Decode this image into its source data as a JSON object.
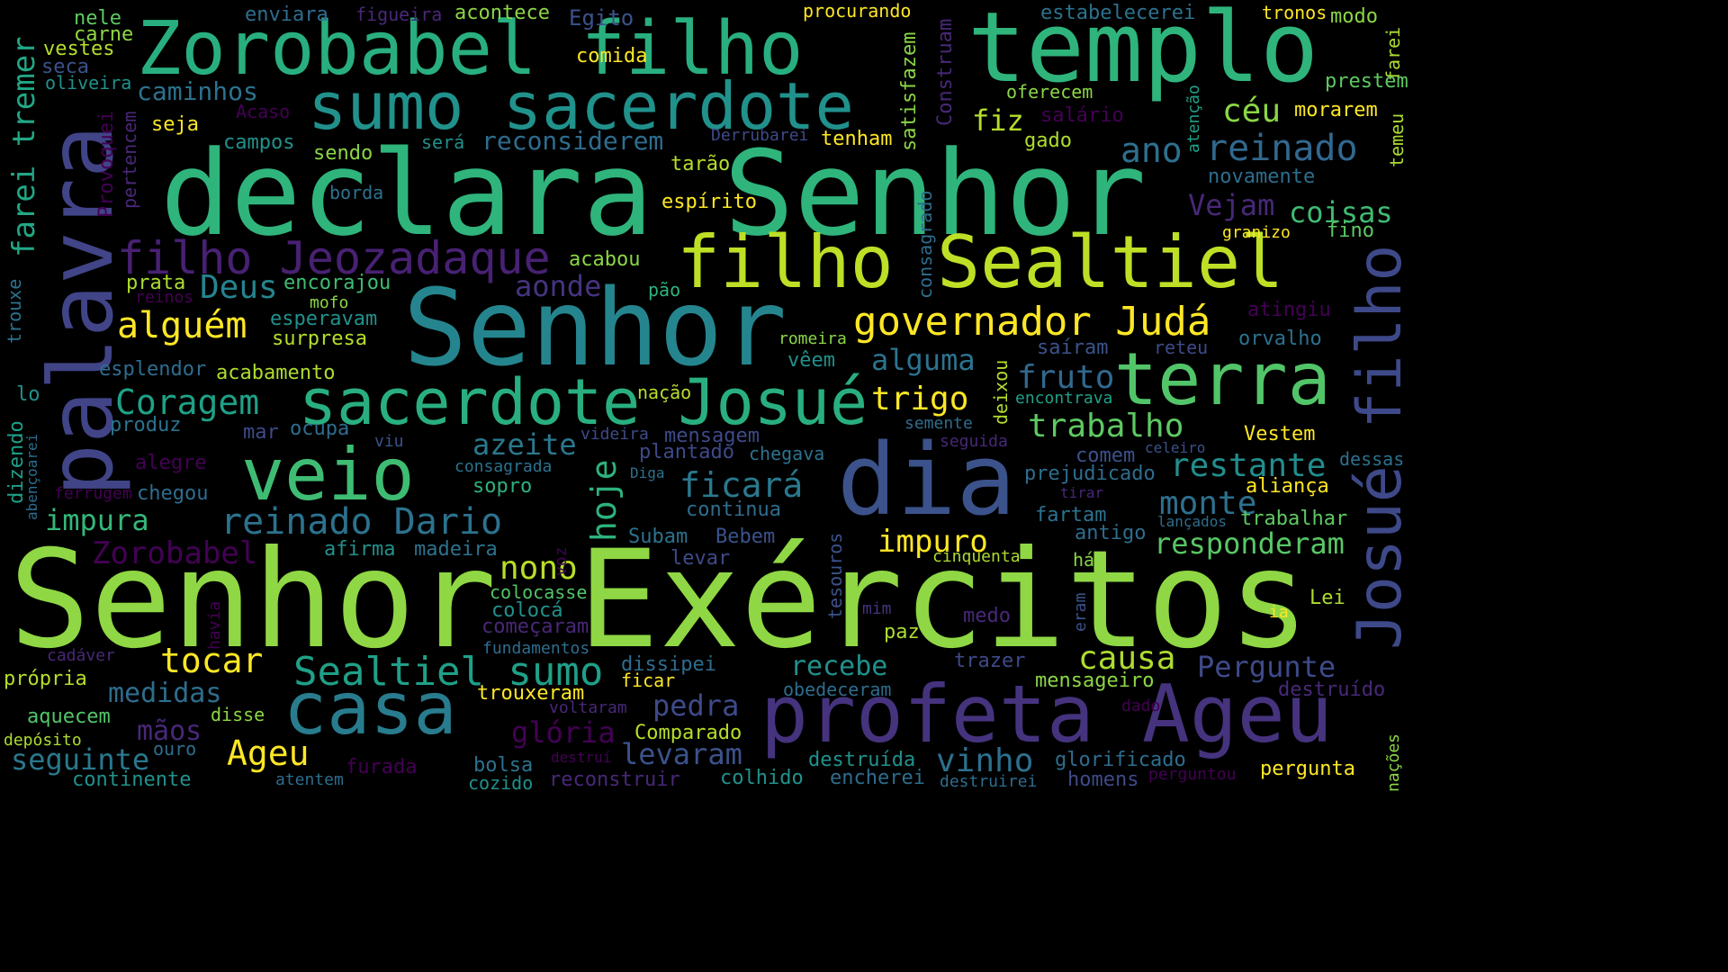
{
  "palette": {
    "background": "#000000",
    "purple_dark": "#440154",
    "purple": "#482878",
    "indigo": "#3e4a89",
    "blue": "#31688e",
    "teal": "#26828e",
    "teal_green": "#1f9e89",
    "green": "#35b779",
    "lime": "#6ece58",
    "yellow_green": "#b5de2b",
    "yellow": "#fde725"
  },
  "words": [
    {
      "text": "Senhor Exércitos",
      "color": "#8fd744",
      "weight": 1.0
    },
    {
      "text": "declara Senhor",
      "color": "#2fb47c",
      "weight": 0.88
    },
    {
      "text": "Senhor",
      "color": "#25858e",
      "weight": 0.78
    },
    {
      "text": "templo",
      "color": "#2fb47c",
      "weight": 0.62
    },
    {
      "text": "Zorobabel filho",
      "color": "#29af7f",
      "weight": 0.6
    },
    {
      "text": "dia",
      "color": "#3b528b",
      "weight": 0.7
    },
    {
      "text": "palavra",
      "color": "#414487",
      "weight": 0.58
    },
    {
      "text": "profeta Ageu",
      "color": "#46337e",
      "weight": 0.55
    },
    {
      "text": "filho Sealtiel",
      "color": "#bddf26",
      "weight": 0.52
    },
    {
      "text": "veio",
      "color": "#3fbc73",
      "weight": 0.5
    },
    {
      "text": "casa",
      "color": "#287c8e",
      "weight": 0.5
    },
    {
      "text": "terra",
      "color": "#52c569",
      "weight": 0.5
    },
    {
      "text": "sumo sacerdote",
      "color": "#21918c",
      "weight": 0.45
    },
    {
      "text": "sacerdote Josué",
      "color": "#29af7f",
      "weight": 0.42
    },
    {
      "text": "Josué filho",
      "color": "#3e4989",
      "weight": 0.42
    },
    {
      "text": "filho Jeozadaque",
      "color": "#482173",
      "weight": 0.33
    },
    {
      "text": "governador Judá",
      "color": "#fde725",
      "weight": 0.3
    },
    {
      "text": "Sealtiel sumo",
      "color": "#1fa088",
      "weight": 0.28
    },
    {
      "text": "reinado",
      "color": "#31688e",
      "weight": 0.25
    },
    {
      "text": "reinado Dario",
      "color": "#2c728e",
      "weight": 0.25
    },
    {
      "text": "Zorobabel",
      "color": "#440154",
      "weight": 0.22
    },
    {
      "text": "alguém",
      "color": "#fde725",
      "weight": 0.25
    },
    {
      "text": "Coragem",
      "color": "#1fa187",
      "weight": 0.24
    },
    {
      "text": "ano",
      "color": "#2d708e",
      "weight": 0.24
    },
    {
      "text": "hoje",
      "color": "#2db27d",
      "weight": 0.24
    },
    {
      "text": "Ageu",
      "color": "#fde725",
      "weight": 0.24
    },
    {
      "text": "céu",
      "color": "#8bd646",
      "weight": 0.23
    },
    {
      "text": "restante",
      "color": "#228d8d",
      "weight": 0.23
    },
    {
      "text": "ficará",
      "color": "#2a788e",
      "weight": 0.22
    },
    {
      "text": "tocar",
      "color": "#fde725",
      "weight": 0.22
    },
    {
      "text": "causa",
      "color": "#addc30",
      "weight": 0.22
    },
    {
      "text": "nono",
      "color": "#b8de29",
      "weight": 0.22
    },
    {
      "text": "Deus",
      "color": "#25848e",
      "weight": 0.22
    },
    {
      "text": "azeite",
      "color": "#2a788e",
      "weight": 0.2
    },
    {
      "text": "trabalho",
      "color": "#5ec962",
      "weight": 0.2
    },
    {
      "text": "fruto",
      "color": "#31688e",
      "weight": 0.2
    },
    {
      "text": "trigo",
      "color": "#fde725",
      "weight": 0.2
    },
    {
      "text": "monte",
      "color": "#2d708e",
      "weight": 0.2
    },
    {
      "text": "farei tremer",
      "color": "#22a785",
      "weight": 0.2
    },
    {
      "text": "impuro",
      "color": "#fde725",
      "weight": 0.2
    },
    {
      "text": "impura",
      "color": "#35b779",
      "weight": 0.18
    },
    {
      "text": "coisas",
      "color": "#3fbc73",
      "weight": 0.18
    },
    {
      "text": "Vejam",
      "color": "#482878",
      "weight": 0.18
    },
    {
      "text": "alguma",
      "color": "#2c738e",
      "weight": 0.18
    },
    {
      "text": "vinho",
      "color": "#2d708e",
      "weight": 0.2
    },
    {
      "text": "Pergunte",
      "color": "#3e4a89",
      "weight": 0.18
    },
    {
      "text": "responderam",
      "color": "#58c765",
      "weight": 0.18
    },
    {
      "text": "levaram",
      "color": "#3b528b",
      "weight": 0.18
    },
    {
      "text": "glória",
      "color": "#440154",
      "weight": 0.18
    },
    {
      "text": "pedra",
      "color": "#3e4a89",
      "weight": 0.18
    },
    {
      "text": "seguinte",
      "color": "#2a788e",
      "weight": 0.16
    },
    {
      "text": "aonde",
      "color": "#46337e",
      "weight": 0.16
    },
    {
      "text": "fiz",
      "color": "#b5de2b",
      "weight": 0.16
    },
    {
      "text": "recebe",
      "color": "#21918c",
      "weight": 0.16
    },
    {
      "text": "medidas",
      "color": "#2e6d8e",
      "weight": 0.16
    },
    {
      "text": "mãos",
      "color": "#482878",
      "weight": 0.15
    },
    {
      "text": "reconsiderem",
      "color": "#2e6d8e",
      "weight": 0.14
    },
    {
      "text": "caminhos",
      "color": "#2c728e",
      "weight": 0.14
    }
  ],
  "small_words": [
    "nele",
    "carne",
    "vestes",
    "seca",
    "oliveira",
    "enviara",
    "figueira",
    "acontece",
    "Egito",
    "comida",
    "procurando",
    "Construam",
    "estabelecerei",
    "tronos",
    "modo",
    "farei",
    "prestem",
    "temeu",
    "oferecem",
    "salário",
    "atenção",
    "morarem",
    "seja",
    "Acaso",
    "campos",
    "sendo",
    "será",
    "Derrubarei",
    "tenham",
    "satisfazem",
    "gado",
    "novamente",
    "Provoquei",
    "pertencem",
    "tarão",
    "borda",
    "espírito",
    "consagrado",
    "granizo",
    "fino",
    "prata",
    "reinos",
    "encorajou",
    "acabou",
    "pão",
    "mofo",
    "esperavam",
    "surpresa",
    "atingiu",
    "trouxe",
    "esplendor",
    "acabamento",
    "romeira",
    "vêem",
    "deixou",
    "saíram",
    "reteu",
    "orvalho",
    "lo",
    "nação",
    "encontrava",
    "produz",
    "mar",
    "ocupa",
    "viu",
    "semente",
    "videira",
    "mensagem",
    "seguida",
    "Vestem",
    "dizendo",
    "abençoarei",
    "alegre",
    "plantado",
    "chegava",
    "consagrada",
    "comem",
    "celeiro",
    "dessas",
    "Diga",
    "prejudicado",
    "ferrugem",
    "chegou",
    "sopro",
    "tirar",
    "aliança",
    "continua",
    "voz",
    "fartam",
    "lançados",
    "trabalhar",
    "tesouros",
    "Subam",
    "Bebem",
    "antigo",
    "afirma",
    "madeira",
    "levar",
    "cinquenta",
    "há",
    "colocasse",
    "Lei",
    "havia",
    "colocá",
    "começaram",
    "mim",
    "eram",
    "medo",
    "ia",
    "fundamentos",
    "paz",
    "cadáver",
    "própria",
    "dissipei",
    "trazer",
    "mensageiro",
    "trouxeram",
    "ficar",
    "obedeceram",
    "destruído",
    "aquecem",
    "disse",
    "voltaram",
    "dado",
    "Comparado",
    "depósito",
    "ouro",
    "destruí",
    "destruída",
    "glorificado",
    "nações",
    "bolsa",
    "furada",
    "pergunta",
    "continente",
    "atentem",
    "cozido",
    "reconstruir",
    "colhido",
    "encherei",
    "destruirei",
    "homens",
    "perguntou"
  ]
}
